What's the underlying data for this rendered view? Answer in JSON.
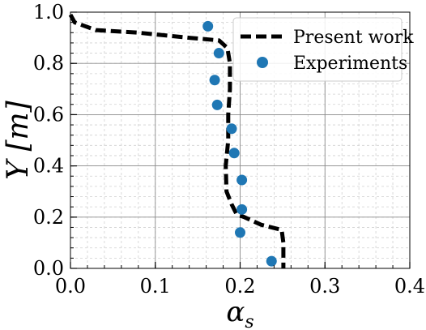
{
  "chart_data": {
    "type": "line",
    "xlabel": "α_s",
    "ylabel": "Y [m]",
    "xlim": [
      0,
      0.4
    ],
    "ylim": [
      0,
      1.0
    ],
    "xticks": [
      0.0,
      0.1,
      0.2,
      0.3,
      0.4
    ],
    "xtick_labels": [
      "0.0",
      "0.1",
      "0.2",
      "0.3",
      "0.4"
    ],
    "yticks": [
      0.0,
      0.2,
      0.4,
      0.6,
      0.8,
      1.0
    ],
    "ytick_labels": [
      "0.0",
      "0.2",
      "0.4",
      "0.6",
      "0.8",
      "1.0"
    ],
    "grid": true,
    "legend_position": "top-right",
    "series": [
      {
        "name": "Present work",
        "style": "dashed-line",
        "color": "#000000",
        "x": [
          0.0,
          0.005,
          0.03,
          0.08,
          0.14,
          0.175,
          0.185,
          0.188,
          0.188,
          0.186,
          0.186,
          0.183,
          0.184,
          0.19,
          0.196,
          0.205,
          0.225,
          0.249,
          0.251,
          0.251
        ],
        "y": [
          0.99,
          0.96,
          0.93,
          0.92,
          0.9,
          0.89,
          0.86,
          0.8,
          0.7,
          0.6,
          0.5,
          0.4,
          0.3,
          0.25,
          0.21,
          0.2,
          0.17,
          0.15,
          0.1,
          0.0
        ]
      },
      {
        "name": "Experiments",
        "style": "markers",
        "color": "#1f77b4",
        "x": [
          0.162,
          0.175,
          0.17,
          0.173,
          0.19,
          0.193,
          0.202,
          0.202,
          0.2,
          0.237
        ],
        "y": [
          0.945,
          0.84,
          0.735,
          0.638,
          0.545,
          0.45,
          0.345,
          0.23,
          0.14,
          0.028
        ]
      }
    ]
  }
}
